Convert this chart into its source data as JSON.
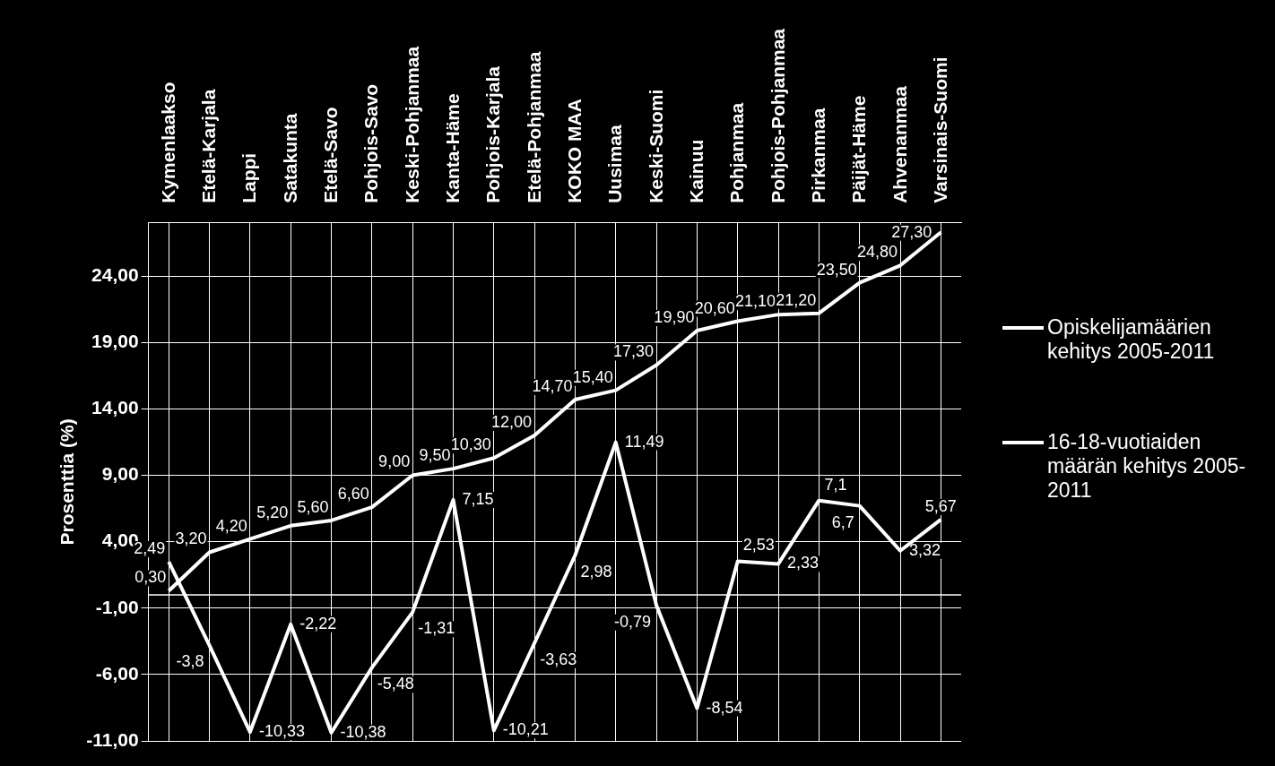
{
  "chart_data": {
    "type": "line",
    "ylabel": "Prosenttia (%)",
    "categories": [
      "Kymenlaakso",
      "Etelä-Karjala",
      "Lappi",
      "Satakunta",
      "Etelä-Savo",
      "Pohjois-Savo",
      "Keski-Pohjanmaa",
      "Kanta-Häme",
      "Pohjois-Karjala",
      "Etelä-Pohjanmaa",
      "KOKO MAA",
      "Uusimaa",
      "Keski-Suomi",
      "Kainuu",
      "Pohjanmaa",
      "Pohjois-Pohjanmaa",
      "Pirkanmaa",
      "Päijät-Häme",
      "Ahvenanmaa",
      "Varsinais-Suomi"
    ],
    "series": [
      {
        "name": "Opiskelijamäärien kehitys 2005-2011",
        "color": "#ffffff",
        "values": [
          0.3,
          3.2,
          4.2,
          5.2,
          5.6,
          6.6,
          9.0,
          9.5,
          10.3,
          12.0,
          14.7,
          15.4,
          17.3,
          19.9,
          20.6,
          21.1,
          21.2,
          23.5,
          24.8,
          27.3
        ],
        "value_labels": [
          "0,30",
          "3,20",
          "4,20",
          "5,20",
          "5,60",
          "6,60",
          "9,00",
          "9,50",
          "10,30",
          "12,00",
          "14,70",
          "15,40",
          "17,30",
          "19,90",
          "20,60",
          "21,10",
          "21,20",
          "23,50",
          "24,80",
          "27,30"
        ]
      },
      {
        "name": "16-18-vuotiaiden määrän kehitys 2005-2011",
        "color": "#ffffff",
        "values": [
          2.49,
          -3.8,
          -10.33,
          -2.22,
          -10.38,
          -5.48,
          -1.31,
          7.15,
          -10.21,
          -3.63,
          2.98,
          11.49,
          -0.79,
          -8.54,
          2.53,
          2.33,
          7.1,
          6.7,
          3.32,
          5.67
        ],
        "value_labels": [
          "2,49",
          "-3,8",
          "-10,33",
          "-2,22",
          "-10,38",
          "-5,48",
          "-1,31",
          "7,15",
          "-10,21",
          "-3,63",
          "2,98",
          "11,49",
          "-0,79",
          "-8,54",
          "2,53",
          "2,33",
          "7,1",
          "6,7",
          "3,32",
          "5,67"
        ]
      }
    ],
    "ylim": [
      -11,
      28
    ],
    "yticks": [
      {
        "value": -11,
        "label": "-11,00"
      },
      {
        "value": -6,
        "label": "-6,00"
      },
      {
        "value": -1,
        "label": "-1,00"
      },
      {
        "value": 4,
        "label": "4,00"
      },
      {
        "value": 9,
        "label": "9,00"
      },
      {
        "value": 14,
        "label": "14,00"
      },
      {
        "value": 19,
        "label": "19,00"
      },
      {
        "value": 24,
        "label": "24,00"
      }
    ],
    "ref_lines": [
      {
        "axis": "y",
        "value": 0,
        "color": "#ffffff"
      }
    ],
    "grid": true,
    "legend": "right",
    "marker": "none",
    "line_style": "solid"
  }
}
